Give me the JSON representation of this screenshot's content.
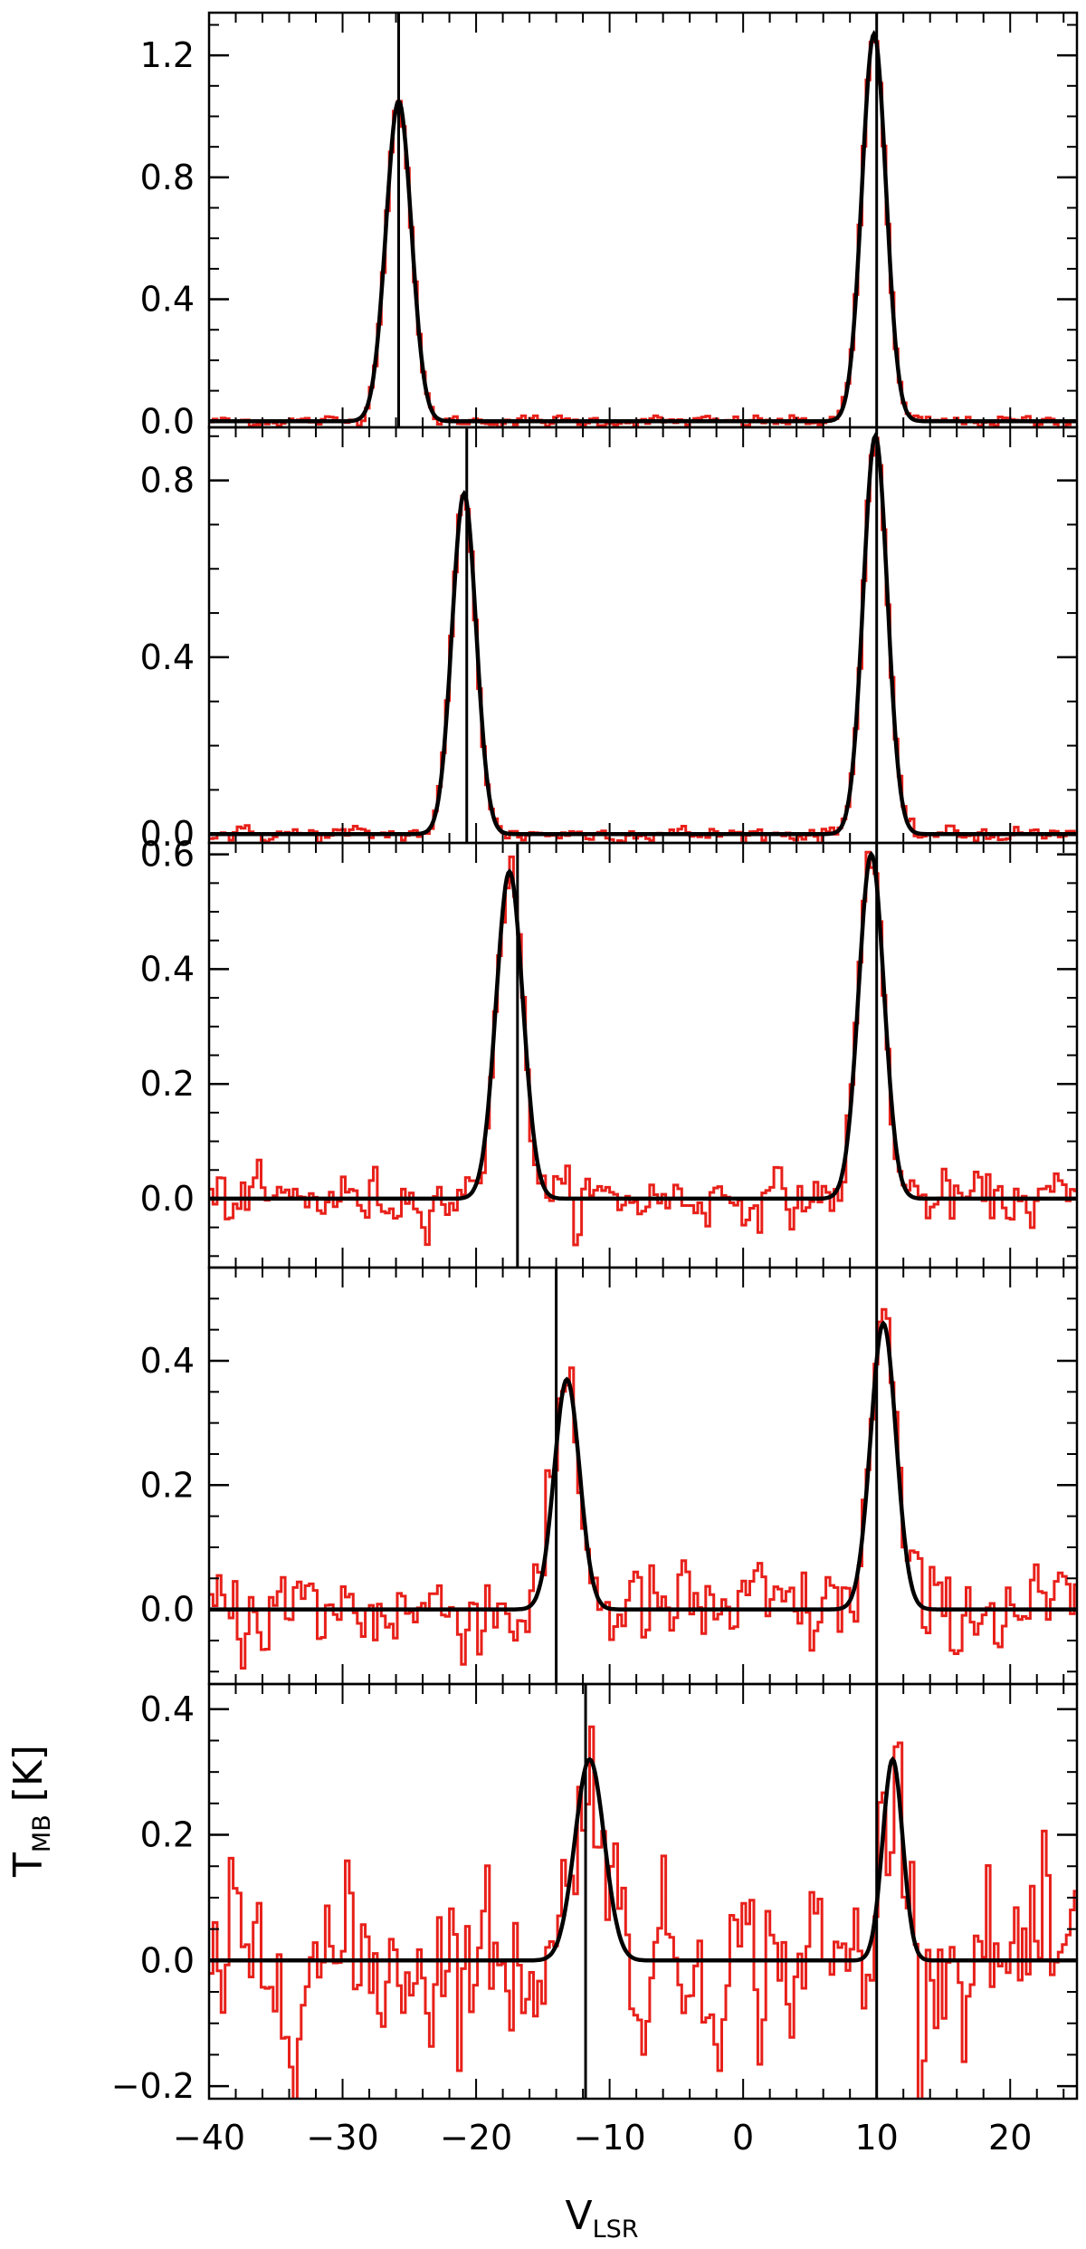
{
  "chart_data": {
    "type": "line",
    "stacked_panels": 5,
    "shared_x": true,
    "xlabel": "V",
    "xlabel_subscript": "LSR",
    "ylabel": "T",
    "ylabel_subscript": "MB",
    "ylabel_unit": "[K]",
    "xlim": [
      -40,
      25
    ],
    "xticks": [
      -40,
      -30,
      -20,
      -10,
      0,
      10,
      20
    ],
    "xtick_labels": [
      "−40",
      "−30",
      "−20",
      "−10",
      "0",
      "10",
      "20"
    ],
    "series_styles": {
      "observed": {
        "color": "#e8201a",
        "style": "histogram-step"
      },
      "fit": {
        "color": "#000000",
        "style": "gaussian"
      },
      "marker": {
        "color": "#000000",
        "style": "vertical-line"
      }
    },
    "panels": [
      {
        "ylim": [
          -0.02,
          1.34
        ],
        "yticks": [
          0.0,
          0.4,
          0.8,
          1.2
        ],
        "ytick_labels": [
          "0.0",
          "0.4",
          "0.8",
          "1.2"
        ],
        "noise": 0.012,
        "components": [
          {
            "center": -25.8,
            "amplitude": 1.05,
            "sigma": 0.95
          },
          {
            "center": 9.8,
            "amplitude": 1.27,
            "sigma": 0.9
          }
        ],
        "markers": [
          -25.8,
          10.0
        ]
      },
      {
        "ylim": [
          -0.02,
          0.92
        ],
        "yticks": [
          0.0,
          0.4,
          0.8
        ],
        "ytick_labels": [
          "0.0",
          "0.4",
          "0.8"
        ],
        "noise": 0.012,
        "components": [
          {
            "center": -20.9,
            "amplitude": 0.77,
            "sigma": 0.9
          },
          {
            "center": 9.9,
            "amplitude": 0.9,
            "sigma": 0.9
          }
        ],
        "markers": [
          -20.7,
          10.0
        ]
      },
      {
        "ylim": [
          -0.12,
          0.62
        ],
        "yticks": [
          0.0,
          0.2,
          0.4,
          0.6
        ],
        "ytick_labels": [
          "0.0",
          "0.2",
          "0.4",
          "0.6"
        ],
        "noise": 0.03,
        "components": [
          {
            "center": -17.5,
            "amplitude": 0.57,
            "sigma": 1.0
          },
          {
            "center": 9.6,
            "amplitude": 0.6,
            "sigma": 0.95
          }
        ],
        "markers": [
          -16.9,
          10.0
        ]
      },
      {
        "ylim": [
          -0.12,
          0.55
        ],
        "yticks": [
          0.0,
          0.2,
          0.4
        ],
        "ytick_labels": [
          "0.0",
          "0.2",
          "0.4"
        ],
        "noise": 0.05,
        "components": [
          {
            "center": -13.2,
            "amplitude": 0.37,
            "sigma": 0.95
          },
          {
            "center": 10.5,
            "amplitude": 0.46,
            "sigma": 0.95
          }
        ],
        "markers": [
          -14.0,
          10.0
        ]
      },
      {
        "ylim": [
          -0.22,
          0.44
        ],
        "yticks": [
          -0.2,
          0.0,
          0.2,
          0.4
        ],
        "ytick_labels": [
          "−0.2",
          "0.0",
          "0.2",
          "0.4"
        ],
        "noise": 0.09,
        "components": [
          {
            "center": -11.5,
            "amplitude": 0.32,
            "sigma": 1.1
          },
          {
            "center": 11.2,
            "amplitude": 0.32,
            "sigma": 0.75
          }
        ],
        "markers": [
          -11.8,
          10.0
        ]
      }
    ]
  }
}
